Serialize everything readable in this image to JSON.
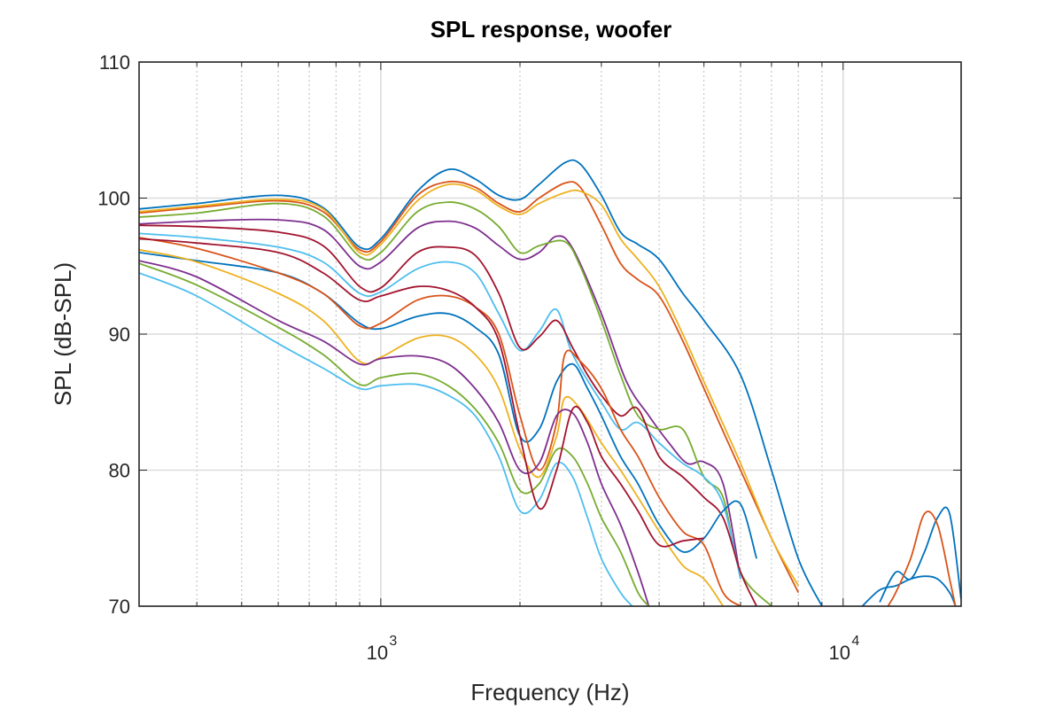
{
  "chart_data": {
    "type": "line",
    "title": "SPL response, woofer",
    "xlabel": "Frequency (Hz)",
    "ylabel": "SPL (dB-SPL)",
    "x_scale": "log",
    "xlim": [
      300,
      18000
    ],
    "ylim": [
      70,
      110
    ],
    "y_ticks": [
      "70",
      "80",
      "90",
      "100",
      "110"
    ],
    "x_ticks": [
      {
        "value": 1000,
        "base": "10",
        "exp": "3"
      },
      {
        "value": 10000,
        "base": "10",
        "exp": "4"
      }
    ],
    "grid": true,
    "colors": [
      "#0072BD",
      "#D95319",
      "#EDB120",
      "#7E2F8E",
      "#77AC30",
      "#4DBEEE",
      "#A2142F"
    ],
    "series": [
      {
        "x": [
          300,
          400,
          600,
          750,
          900,
          1000,
          1200,
          1400,
          1600,
          1800,
          2000,
          2200,
          2500,
          2700,
          3000,
          3300,
          3600,
          4000,
          4500,
          5000,
          6000,
          7000,
          8000,
          9000,
          10000,
          11000,
          12000,
          13000,
          14000,
          15000,
          16000,
          17000,
          18000
        ],
        "y": [
          99.2,
          99.6,
          100.2,
          99.3,
          96.4,
          97.0,
          100.5,
          102.1,
          101.4,
          100.2,
          99.9,
          101.0,
          102.6,
          102.5,
          100.2,
          97.5,
          96.6,
          95.5,
          93.0,
          91.0,
          87.0,
          80.0,
          73.5,
          70.0,
          null,
          null,
          70.3,
          72.5,
          72.0,
          74.0,
          76.5,
          76.8,
          70.5
        ]
      },
      {
        "x": [
          300,
          400,
          600,
          750,
          900,
          1000,
          1200,
          1400,
          1600,
          1800,
          2000,
          2200,
          2500,
          2700,
          3000,
          3300,
          3600,
          4000,
          4500,
          5000,
          6000,
          7000,
          8000
        ],
        "y": [
          98.9,
          99.3,
          99.8,
          99.0,
          96.2,
          96.8,
          100.2,
          101.2,
          100.8,
          99.6,
          99.0,
          100.0,
          101.1,
          100.8,
          98.0,
          95.2,
          94.0,
          92.8,
          89.5,
          86.0,
          80.0,
          75.0,
          71.0
        ]
      },
      {
        "x": [
          300,
          400,
          600,
          750,
          900,
          1000,
          1200,
          1400,
          1600,
          1800,
          2000,
          2200,
          2500,
          2700,
          3000,
          3300,
          3600,
          4000,
          4500,
          5000,
          6000,
          7000,
          8000
        ],
        "y": [
          99.0,
          99.4,
          99.9,
          99.2,
          96.0,
          96.6,
          99.8,
          101.0,
          100.6,
          99.4,
          98.8,
          99.6,
          100.4,
          100.5,
          99.5,
          97.0,
          95.5,
          93.5,
          90.0,
          86.5,
          80.5,
          75.0,
          71.5
        ]
      },
      {
        "x": [
          300,
          400,
          600,
          750,
          900,
          1000,
          1200,
          1400,
          1600,
          1800,
          2000,
          2200,
          2400,
          2600,
          3000,
          3400,
          3800,
          4200,
          4600,
          5000,
          5500,
          6000
        ],
        "y": [
          98.1,
          98.3,
          98.4,
          97.7,
          95.0,
          95.3,
          97.8,
          98.3,
          97.8,
          96.5,
          95.5,
          96.0,
          97.2,
          96.3,
          91.5,
          86.5,
          84.0,
          82.0,
          80.5,
          80.6,
          79.0,
          72.0
        ]
      },
      {
        "x": [
          300,
          400,
          600,
          750,
          900,
          1000,
          1200,
          1400,
          1600,
          1800,
          2000,
          2200,
          2500,
          2700,
          3000,
          3300,
          3600,
          4000,
          4500,
          5000,
          5500,
          6000,
          7000
        ],
        "y": [
          98.6,
          98.9,
          99.6,
          98.7,
          95.7,
          96.0,
          99.0,
          99.7,
          99.2,
          97.9,
          96.0,
          96.5,
          96.8,
          95.0,
          91.0,
          87.0,
          84.0,
          83.0,
          83.0,
          79.5,
          78.0,
          72.5,
          70.0
        ]
      },
      {
        "x": [
          300,
          400,
          600,
          750,
          900,
          1000,
          1200,
          1400,
          1600,
          1800,
          2000,
          2200,
          2400,
          2600,
          3000,
          3300,
          3600,
          4000,
          4500,
          5000,
          5500,
          6000
        ],
        "y": [
          97.4,
          97.1,
          96.4,
          95.3,
          93.0,
          93.1,
          94.8,
          95.3,
          94.5,
          91.5,
          88.8,
          90.2,
          91.8,
          88.5,
          85.0,
          83.0,
          83.5,
          82.0,
          80.5,
          79.5,
          77.5,
          72.0
        ]
      },
      {
        "x": [
          300,
          400,
          600,
          750,
          900,
          1000,
          1200,
          1400,
          1600,
          1800,
          2000,
          2200,
          2400,
          2600,
          2800,
          3000,
          3300,
          3600,
          4000,
          4500,
          5000,
          5500,
          6000,
          6500
        ],
        "y": [
          98.0,
          97.9,
          97.5,
          96.5,
          93.5,
          93.4,
          96.0,
          96.4,
          95.8,
          93.0,
          89.0,
          89.8,
          91.0,
          89.0,
          87.0,
          85.5,
          84.0,
          84.5,
          81.0,
          79.5,
          78.0,
          76.5,
          72.5,
          70.0
        ]
      },
      {
        "x": [
          300,
          400,
          600,
          750,
          900,
          1000,
          1200,
          1400,
          1600,
          1800,
          2000,
          2200,
          2400,
          2600,
          2800,
          3000,
          3300,
          3600,
          4000,
          4500,
          5000,
          5500,
          6000,
          6500
        ],
        "y": [
          96.0,
          95.4,
          94.5,
          93.0,
          90.8,
          90.4,
          91.3,
          91.5,
          90.5,
          88.5,
          82.5,
          83.0,
          86.5,
          87.8,
          86.0,
          84.0,
          81.0,
          79.0,
          76.0,
          74.0,
          75.0,
          77.0,
          77.5,
          73.5
        ]
      },
      {
        "x": [
          300,
          400,
          600,
          750,
          900,
          1000,
          1200,
          1400,
          1600,
          1800,
          2000,
          2200,
          2400,
          2500,
          2700,
          3000,
          3300,
          3600,
          4000,
          4500,
          5000,
          5500,
          6000
        ],
        "y": [
          97.1,
          96.3,
          94.5,
          93.0,
          90.6,
          90.8,
          92.5,
          92.8,
          92.0,
          90.0,
          84.0,
          80.0,
          83.5,
          88.5,
          88.0,
          86.0,
          83.0,
          81.0,
          78.0,
          75.5,
          74.5,
          71.0,
          70.0
        ]
      },
      {
        "x": [
          300,
          400,
          600,
          750,
          900,
          1000,
          1200,
          1400,
          1600,
          1800,
          2000,
          2200,
          2400,
          2500,
          2700,
          3000,
          3300,
          3600,
          4000,
          4500,
          5000,
          5500
        ],
        "y": [
          96.2,
          95.3,
          93.0,
          91.0,
          88.0,
          88.3,
          89.7,
          89.8,
          88.5,
          86.0,
          81.5,
          79.5,
          82.5,
          85.3,
          84.5,
          82.0,
          80.0,
          78.0,
          75.5,
          73.0,
          72.0,
          70.0
        ]
      },
      {
        "x": [
          300,
          400,
          600,
          750,
          900,
          1000,
          1200,
          1400,
          1600,
          1800,
          2000,
          2200,
          2400,
          2600,
          2800,
          3000,
          3300,
          3600,
          3800
        ],
        "y": [
          95.4,
          94.2,
          91.0,
          89.5,
          87.8,
          88.2,
          88.4,
          87.8,
          86.0,
          83.5,
          80.0,
          80.5,
          84.0,
          84.2,
          82.0,
          79.0,
          76.0,
          72.5,
          70.0
        ]
      },
      {
        "x": [
          300,
          400,
          600,
          750,
          900,
          1000,
          1200,
          1400,
          1600,
          1800,
          2000,
          2200,
          2400,
          2600,
          2800,
          3000,
          3300,
          3600,
          3800
        ],
        "y": [
          95.2,
          93.6,
          90.5,
          88.5,
          86.3,
          86.8,
          87.1,
          86.2,
          84.5,
          82.0,
          78.5,
          79.0,
          81.5,
          81.0,
          79.0,
          76.5,
          74.0,
          71.0,
          70.0
        ]
      },
      {
        "x": [
          300,
          400,
          600,
          750,
          900,
          1000,
          1200,
          1400,
          1600,
          1800,
          2000,
          2200,
          2400,
          2600,
          2800,
          3000,
          3300,
          3500
        ],
        "y": [
          94.5,
          92.8,
          89.3,
          87.5,
          86.0,
          86.2,
          86.3,
          85.5,
          84.0,
          81.0,
          77.0,
          77.8,
          80.5,
          79.5,
          76.5,
          73.5,
          71.0,
          70.0
        ]
      },
      {
        "x": [
          300,
          400,
          600,
          750,
          900,
          1000,
          1200,
          1400,
          1600,
          1800,
          2000,
          2200,
          2400,
          2600,
          2800,
          3000,
          3300,
          3600,
          4000,
          4500,
          5000
        ],
        "y": [
          97.0,
          96.7,
          96.0,
          94.5,
          92.5,
          92.8,
          93.5,
          93.2,
          92.0,
          89.5,
          82.5,
          77.2,
          80.0,
          84.5,
          83.5,
          81.0,
          79.0,
          77.0,
          74.5,
          74.8,
          75.0
        ]
      },
      {
        "x": [
          11000,
          12000,
          13000,
          14000,
          15000,
          16000,
          17000,
          17500
        ],
        "y": [
          70.0,
          71.2,
          71.5,
          72.0,
          72.2,
          72.0,
          71.0,
          70.0
        ]
      },
      {
        "x": [
          12500,
          13000,
          14000,
          15000,
          16000,
          17000,
          17500
        ],
        "y": [
          70.0,
          71.0,
          73.5,
          76.8,
          76.0,
          72.0,
          70.0
        ]
      }
    ]
  }
}
